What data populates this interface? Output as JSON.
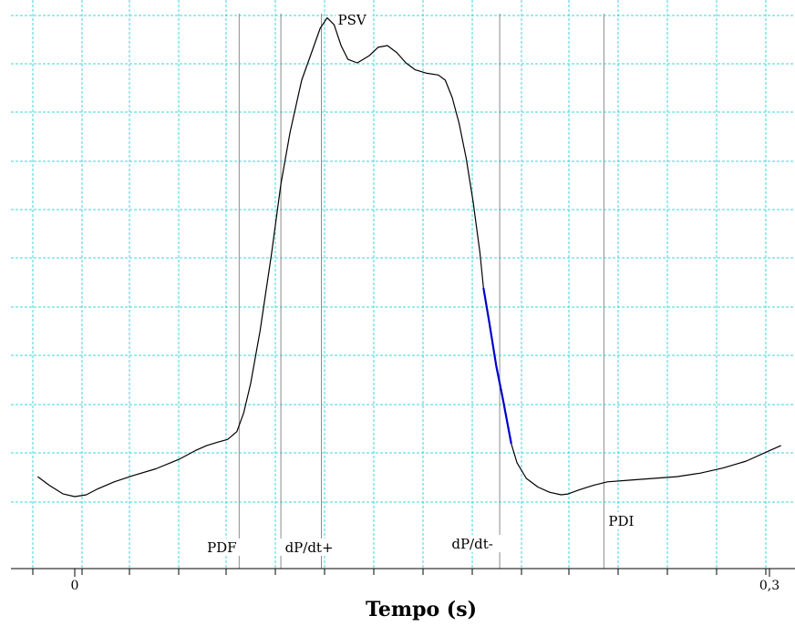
{
  "chart_data": {
    "type": "line",
    "title": "",
    "xlabel": "Tempo (s)",
    "ylabel": "",
    "xlim": [
      -0.016,
      0.305
    ],
    "x_ticks": [
      {
        "value": 0,
        "label": "0"
      },
      {
        "value": 0.3,
        "label": "0,3"
      }
    ],
    "grid": true,
    "series": [
      {
        "color": "#000000",
        "points": [
          [
            -0.016,
            5.1
          ],
          [
            -0.011,
            4.6
          ],
          [
            -0.005,
            4.1
          ],
          [
            0.0,
            3.95
          ],
          [
            0.005,
            4.05
          ],
          [
            0.01,
            4.4
          ],
          [
            0.017,
            4.8
          ],
          [
            0.025,
            5.15
          ],
          [
            0.035,
            5.55
          ],
          [
            0.045,
            6.1
          ],
          [
            0.052,
            6.6
          ],
          [
            0.057,
            6.9
          ],
          [
            0.062,
            7.1
          ],
          [
            0.066,
            7.25
          ],
          [
            0.07,
            7.7
          ],
          [
            0.073,
            8.8
          ],
          [
            0.076,
            10.5
          ],
          [
            0.08,
            13.5
          ],
          [
            0.085,
            18.0
          ],
          [
            0.089,
            22.0
          ],
          [
            0.093,
            25.0
          ],
          [
            0.098,
            28.0
          ],
          [
            0.102,
            29.5
          ],
          [
            0.106,
            31.0
          ],
          [
            0.109,
            31.6
          ],
          [
            0.112,
            31.2
          ],
          [
            0.115,
            30.0
          ],
          [
            0.118,
            29.2
          ],
          [
            0.122,
            29.0
          ],
          [
            0.127,
            29.4
          ],
          [
            0.131,
            29.9
          ],
          [
            0.135,
            30.0
          ],
          [
            0.139,
            29.6
          ],
          [
            0.143,
            29.0
          ],
          [
            0.147,
            28.6
          ],
          [
            0.152,
            28.4
          ],
          [
            0.157,
            28.3
          ],
          [
            0.16,
            28.0
          ],
          [
            0.163,
            27.0
          ],
          [
            0.166,
            25.5
          ],
          [
            0.169,
            23.5
          ],
          [
            0.172,
            21.0
          ],
          [
            0.175,
            18.0
          ],
          [
            0.1765,
            16.0
          ]
        ]
      },
      {
        "color": "#0000cc",
        "points": [
          [
            0.1765,
            16.0
          ],
          [
            0.179,
            14.0
          ],
          [
            0.182,
            11.5
          ],
          [
            0.185,
            9.5
          ],
          [
            0.1885,
            7.0
          ]
        ]
      },
      {
        "color": "#000000",
        "points": [
          [
            0.1885,
            7.0
          ],
          [
            0.191,
            5.9
          ],
          [
            0.195,
            5.0
          ],
          [
            0.2,
            4.5
          ],
          [
            0.205,
            4.2
          ],
          [
            0.21,
            4.05
          ],
          [
            0.213,
            4.1
          ],
          [
            0.218,
            4.35
          ],
          [
            0.224,
            4.6
          ],
          [
            0.23,
            4.8
          ],
          [
            0.24,
            4.9
          ],
          [
            0.25,
            5.0
          ],
          [
            0.26,
            5.1
          ],
          [
            0.27,
            5.3
          ],
          [
            0.28,
            5.6
          ],
          [
            0.29,
            6.0
          ],
          [
            0.3,
            6.6
          ],
          [
            0.305,
            6.9
          ]
        ]
      }
    ],
    "markers": [
      {
        "x": 0.071,
        "label": "PDF"
      },
      {
        "x": 0.089,
        "label": "dP/dt+"
      },
      {
        "x": 0.1065,
        "label": "PSV"
      },
      {
        "x": 0.1835,
        "label": "dP/dt-"
      },
      {
        "x": 0.2285,
        "label": "PDI"
      }
    ]
  }
}
